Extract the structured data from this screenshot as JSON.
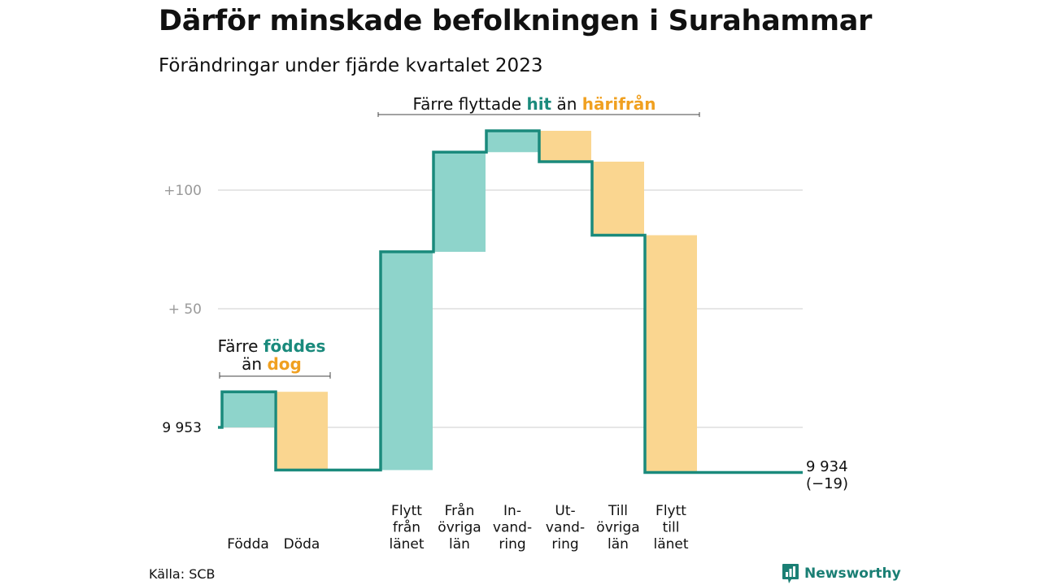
{
  "title": "Därför minskade befolkningen i Surahammar",
  "subtitle": "Förändringar under fjärde kvartalet 2023",
  "source": "Källa: SCB",
  "brand": "Newsworthy",
  "colors": {
    "in": "#8ed4cb",
    "out": "#fad690",
    "line": "#1a8a7c",
    "grid": "#dddddd",
    "accent_in": "#1a8a7c",
    "accent_out": "#f0a020"
  },
  "chart_data": {
    "type": "bar",
    "variant": "waterfall",
    "base": 9953,
    "yticks": [
      {
        "value": 9953,
        "label": "9  953"
      },
      {
        "value": 10003,
        "label": "+  50"
      },
      {
        "value": 10053,
        "label": "+100"
      }
    ],
    "ylim": [
      9930,
      10085
    ],
    "steps": [
      {
        "label": [
          "Födda"
        ],
        "delta": 15,
        "kind": "in"
      },
      {
        "label": [
          "Döda"
        ],
        "delta": -33,
        "kind": "out"
      },
      {
        "label": [
          "Flytt",
          "från",
          "länet"
        ],
        "delta": 92,
        "kind": "in"
      },
      {
        "label": [
          "Från",
          "övriga",
          "län"
        ],
        "delta": 42,
        "kind": "in"
      },
      {
        "label": [
          "In-",
          "vand-",
          "ring"
        ],
        "delta": 9,
        "kind": "in"
      },
      {
        "label": [
          "Ut-",
          "vand-",
          "ring"
        ],
        "delta": -13,
        "kind": "out"
      },
      {
        "label": [
          "Till",
          "övriga",
          "län"
        ],
        "delta": -31,
        "kind": "out"
      },
      {
        "label": [
          "Flytt",
          "till",
          "länet"
        ],
        "delta": -100,
        "kind": "out"
      }
    ],
    "end": {
      "value": 9934,
      "label": "9 934",
      "change": "(−19)"
    },
    "annotations": [
      {
        "group": "births",
        "lines": [
          [
            {
              "t": "Färre ",
              "c": "plain"
            },
            {
              "t": "föddes",
              "c": "in"
            }
          ],
          [
            {
              "t": "än ",
              "c": "plain"
            },
            {
              "t": "dog",
              "c": "out"
            }
          ]
        ]
      },
      {
        "group": "moves",
        "lines": [
          [
            {
              "t": "Färre flyttade ",
              "c": "plain"
            },
            {
              "t": "hit",
              "c": "in"
            },
            {
              "t": " än ",
              "c": "plain"
            },
            {
              "t": "härifrån",
              "c": "out"
            }
          ]
        ]
      }
    ]
  }
}
